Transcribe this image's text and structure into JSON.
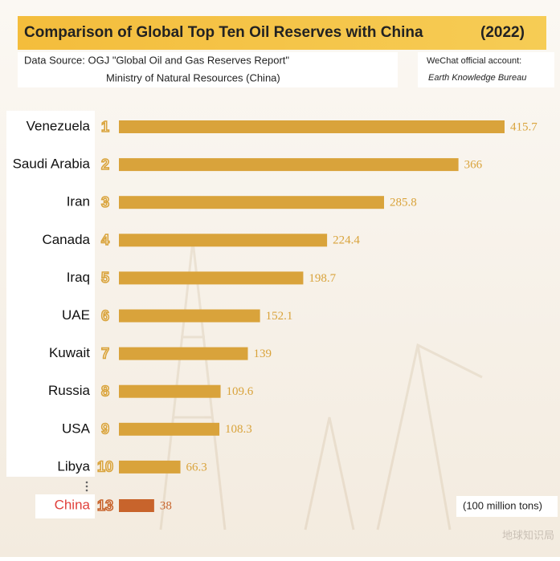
{
  "chart_data": {
    "type": "hbar",
    "title": "Comparison of Global Top Ten Oil Reserves with China",
    "year": "(2022)",
    "source_line1": "Data Source: OGJ \"Global Oil and Gas Reserves Report\"",
    "source_line2": "Ministry of Natural Resources (China)",
    "account_label": "WeChat official account:",
    "account_name": "Earth Knowledge Bureau",
    "unit": "(100 million tons)",
    "watermark": "地球知识局",
    "categories": [
      "Venezuela",
      "Saudi Arabia",
      "Iran",
      "Canada",
      "Iraq",
      "UAE",
      "Kuwait",
      "Russia",
      "USA",
      "Libya",
      "China"
    ],
    "ranks": [
      "1",
      "2",
      "3",
      "4",
      "5",
      "6",
      "7",
      "8",
      "9",
      "10",
      "13"
    ],
    "values": [
      415.7,
      366,
      285.8,
      224.4,
      198.7,
      152.1,
      139,
      109.6,
      108.3,
      66.3,
      38
    ],
    "color": "#d9a33b",
    "highlight_index": 10,
    "highlight_color": "#c8642c",
    "highlight_label_color": "#e0413c"
  }
}
